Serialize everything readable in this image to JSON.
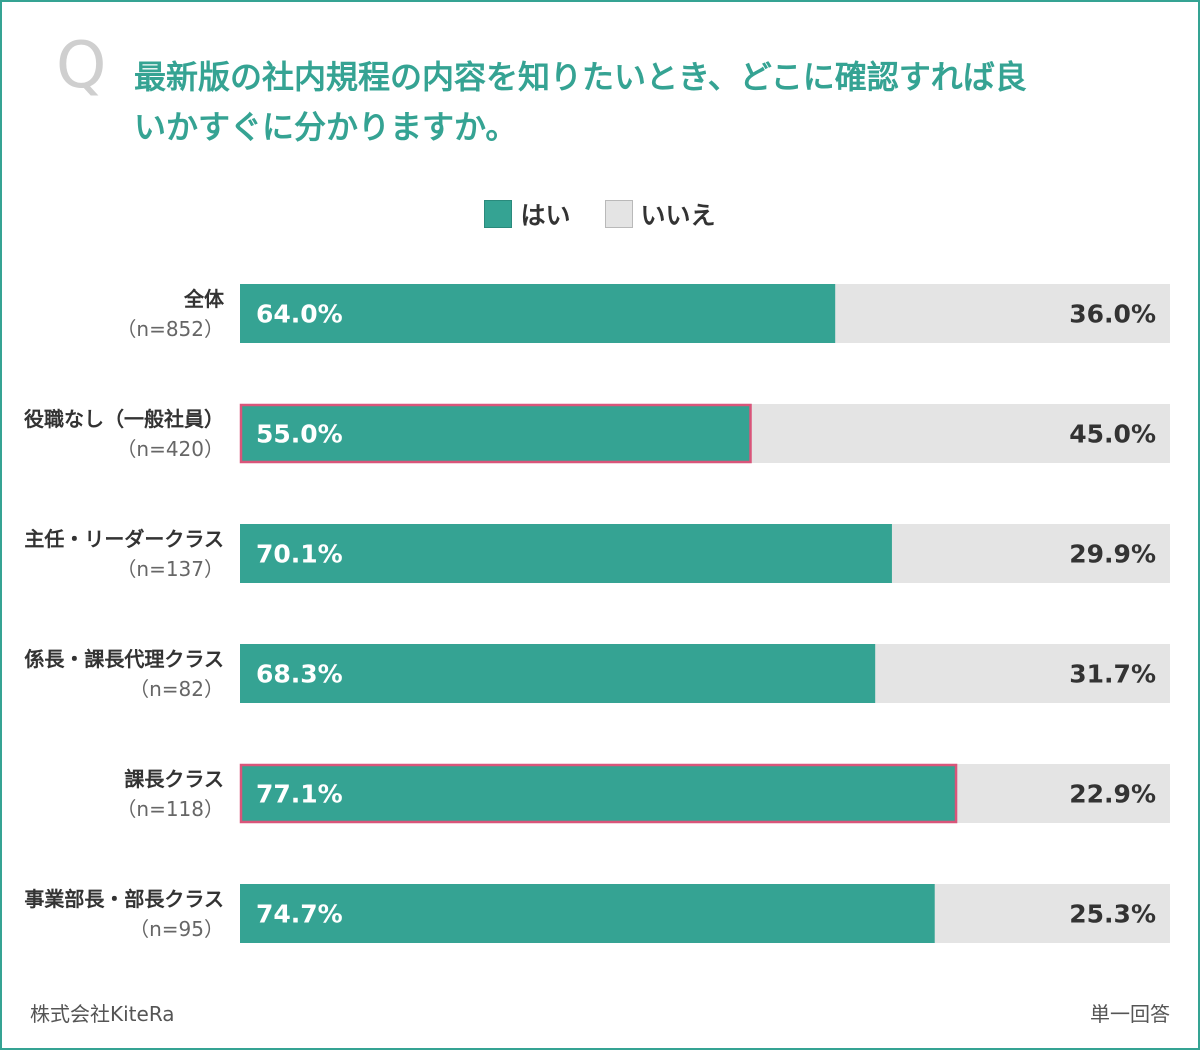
{
  "question": {
    "mark": "Q",
    "line1": "最新版の社内規程の内容を知りたいとき、どこに確認すれば良",
    "line2": "いかすぐに分かりますか。"
  },
  "legend": {
    "yes_label": "はい",
    "no_label": "いいえ"
  },
  "colors": {
    "yes": "#35a393",
    "no": "#e4e4e4",
    "highlight": "#d9557a",
    "brand": "#35a393"
  },
  "chart_data": {
    "type": "bar",
    "orientation": "horizontal",
    "stacked": true,
    "percent": true,
    "xlim": [
      0,
      100
    ],
    "categories": [
      {
        "label": "全体",
        "n": "（n=852）"
      },
      {
        "label": "役職なし（一般社員）",
        "n": "（n=420）"
      },
      {
        "label": "主任・リーダークラス",
        "n": "（n=137）"
      },
      {
        "label": "係長・課長代理クラス",
        "n": "（n=82）"
      },
      {
        "label": "課長クラス",
        "n": "（n=118）"
      },
      {
        "label": "事業部長・部長クラス",
        "n": "（n=95）"
      }
    ],
    "series": [
      {
        "name": "はい",
        "values": [
          64.0,
          55.0,
          70.1,
          68.3,
          77.1,
          74.7
        ]
      },
      {
        "name": "いいえ",
        "values": [
          36.0,
          45.0,
          29.9,
          31.7,
          22.9,
          25.3
        ]
      }
    ],
    "highlighted": [
      false,
      true,
      false,
      false,
      true,
      false
    ],
    "legend_position": "top-center",
    "grid": false
  },
  "footer": {
    "source": "株式会社KiteRa",
    "note": "単一回答"
  }
}
